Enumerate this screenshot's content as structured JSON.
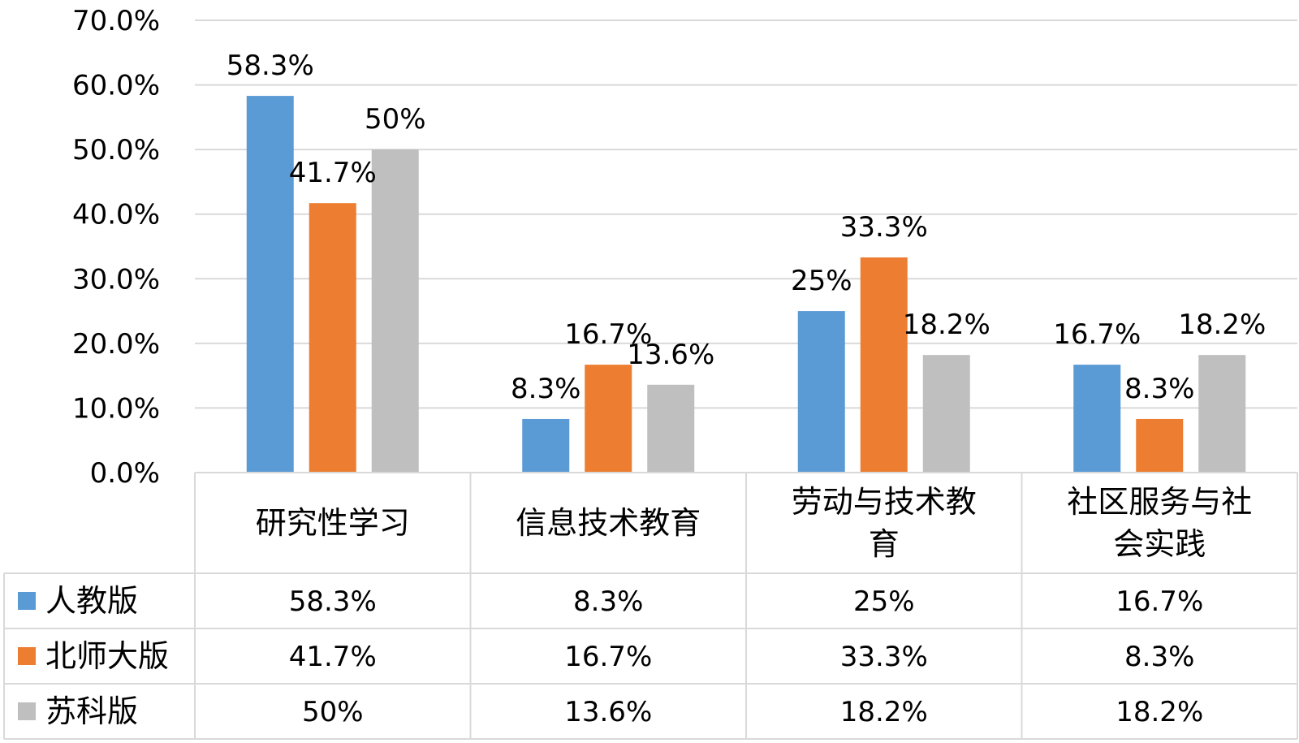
{
  "chart_data": {
    "type": "bar",
    "categories": [
      "研究性学习",
      "信息技术教育",
      "劳动与技术教育",
      "社区服务与社会实践"
    ],
    "series": [
      {
        "name": "人教版",
        "color": "#5B9BD5",
        "values": [
          58.3,
          8.3,
          25,
          16.7
        ],
        "labels": [
          "58.3%",
          "8.3%",
          "25%",
          "16.7%"
        ]
      },
      {
        "name": "北师大版",
        "color": "#ED7D31",
        "values": [
          41.7,
          16.7,
          33.3,
          8.3
        ],
        "labels": [
          "41.7%",
          "16.7%",
          "33.3%",
          "8.3%"
        ]
      },
      {
        "name": "苏科版",
        "color": "#BFBFBF",
        "values": [
          50,
          13.6,
          18.2,
          18.2
        ],
        "labels": [
          "50%",
          "13.6%",
          "18.2%",
          "18.2%"
        ]
      }
    ],
    "ylim": [
      0,
      70
    ],
    "yticks": [
      "0.0%",
      "10.0%",
      "20.0%",
      "30.0%",
      "40.0%",
      "50.0%",
      "60.0%",
      "70.0%"
    ],
    "grid": true,
    "legend": "data-table",
    "title": "",
    "xlabel": "",
    "ylabel": ""
  }
}
